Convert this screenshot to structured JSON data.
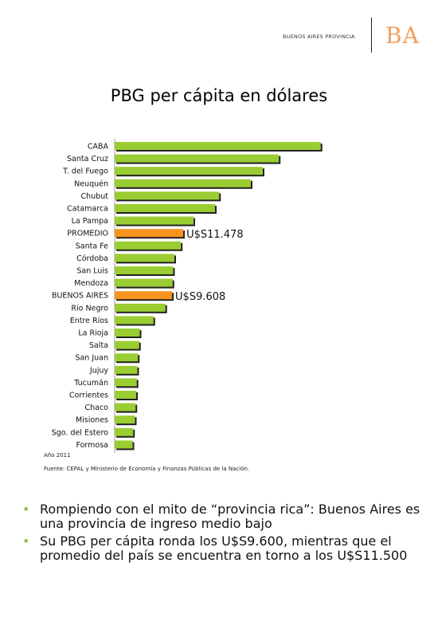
{
  "brand": {
    "text": "BUENOS AIRES PROVINCIA",
    "logo": "BA",
    "logo_color": "#f0a060"
  },
  "chart_data": {
    "type": "bar",
    "orientation": "horizontal",
    "title": "PBG per cápita en dólares",
    "categories": [
      "CABA",
      "Santa Cruz",
      "T. del Fuego",
      "Neuquén",
      "Chubut",
      "Catamarca",
      "La Pampa",
      "PROMEDIO",
      "Santa Fe",
      "Córdoba",
      "San Luis",
      "Mendoza",
      "BUENOS AIRES",
      "Río Negro",
      "Entre Ríos",
      "La Rioja",
      "Salta",
      "San Juan",
      "Jujuy",
      "Tucumán",
      "Corrientes",
      "Chaco",
      "Misiones",
      "Sgo. del Estero",
      "Formosa"
    ],
    "values": [
      34500,
      27500,
      24800,
      22800,
      17500,
      16800,
      13200,
      11478,
      11100,
      10000,
      9800,
      9700,
      9608,
      8500,
      6500,
      4200,
      4100,
      3900,
      3800,
      3700,
      3600,
      3500,
      3400,
      3100,
      3000
    ],
    "highlight": {
      "PROMEDIO": "U$S11.478",
      "BUENOS AIRES": "U$S9.608"
    },
    "xlim": [
      0,
      36000
    ],
    "grid": false,
    "legend": "none",
    "colors": {
      "default": "#9acd32",
      "highlight": "#f7941d",
      "shadow": "#222222"
    }
  },
  "notes": {
    "year": "Año 2011",
    "source": "Fuente: CEPAL y Ministerio de Economía y Finanzas Públicas de la Nación."
  },
  "bullets": [
    "Rompiendo con el mito de “provincia rica”: Buenos Aires es una provincia de ingreso medio bajo",
    "Su PBG per cápita ronda los U$S9.600, mientras que el promedio del país se encuentra en torno a los U$S11.500"
  ],
  "bullet_color": "#8bc34a"
}
